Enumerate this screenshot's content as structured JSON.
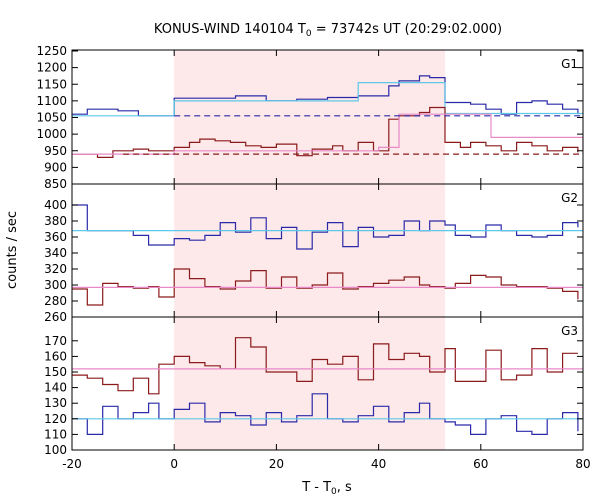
{
  "chart_data": {
    "type": "line",
    "title": "KONUS-WIND 140104 T",
    "title_sub": "0",
    "title_suffix": " = 73742s UT (20:29:02.000)",
    "xlabel": "T - T",
    "xlabel_sub": "0",
    "xlabel_suffix": ", s",
    "ylabel": "counts / sec",
    "xlim": [
      -20,
      80
    ],
    "xticks": [
      "-20",
      "0",
      "20",
      "40",
      "60",
      "80"
    ],
    "shaded_interval": [
      0,
      53
    ],
    "shade_color": "#fde8ea",
    "panels": [
      {
        "name": "G1",
        "ylim": [
          850,
          1250
        ],
        "yticks": [
          850,
          900,
          950,
          1000,
          1050,
          1100,
          1150,
          1200,
          1250
        ],
        "series": [
          {
            "color": "#2a2aa8",
            "edges": [
              -20,
              -17,
              -11,
              -7,
              0,
              12,
              18,
              24,
              30,
              36,
              42,
              44,
              48,
              50,
              53,
              58,
              61,
              64,
              67,
              70,
              73,
              76,
              79
            ],
            "values": [
              1060,
              1075,
              1070,
              1055,
              1108,
              1115,
              1100,
              1105,
              1110,
              1115,
              1145,
              1160,
              1175,
              1170,
              1095,
              1090,
              1075,
              1060,
              1095,
              1100,
              1090,
              1075,
              1060
            ]
          },
          {
            "color": "#5ec8e8",
            "edges": [
              -20,
              0,
              36,
              53,
              80
            ],
            "values": [
              1055,
              1100,
              1155,
              1062
            ]
          },
          {
            "color": "#8b1a1a",
            "edges": [
              -20,
              -15,
              -12,
              -8,
              -5,
              0,
              3,
              5,
              8,
              11,
              14,
              17,
              20,
              24,
              27,
              31,
              33,
              36,
              39,
              40,
              42,
              44,
              48,
              50,
              53,
              56,
              58,
              61,
              64,
              67,
              70,
              73,
              76,
              79
            ],
            "values": [
              940,
              930,
              950,
              955,
              950,
              960,
              975,
              985,
              980,
              975,
              965,
              960,
              970,
              935,
              955,
              965,
              950,
              975,
              950,
              950,
              1045,
              1055,
              1065,
              1080,
              975,
              960,
              975,
              965,
              950,
              975,
              965,
              950,
              960,
              945
            ]
          },
          {
            "color": "#e889c8",
            "edges": [
              -20,
              0,
              40,
              44,
              62,
              80
            ],
            "values": [
              940,
              950,
              960,
              1060,
              990,
              940
            ]
          },
          {
            "color": "#2a2aa8",
            "dashed": true,
            "edges": [
              0,
              80
            ],
            "values": [
              1055,
              1055
            ]
          },
          {
            "color": "#8b1a1a",
            "dashed": true,
            "edges": [
              -10,
              80
            ],
            "values": [
              940,
              940
            ]
          }
        ]
      },
      {
        "name": "G2",
        "ylim": [
          260,
          405
        ],
        "yticks": [
          260,
          280,
          300,
          320,
          340,
          360,
          380,
          400
        ],
        "series": [
          {
            "color": "#2a2aa8",
            "edges": [
              -20,
              -17,
              -11,
              -8,
              -5,
              0,
              3,
              6,
              9,
              12,
              15,
              18,
              21,
              24,
              27,
              30,
              33,
              36,
              39,
              42,
              45,
              48,
              50,
              53,
              55,
              58,
              61,
              64,
              67,
              70,
              73,
              76,
              79
            ],
            "values": [
              400,
              368,
              368,
              362,
              350,
              358,
              356,
              362,
              378,
              366,
              384,
              358,
              372,
              345,
              366,
              378,
              348,
              372,
              360,
              362,
              380,
              368,
              380,
              375,
              362,
              360,
              375,
              368,
              362,
              360,
              362,
              378,
              372
            ]
          },
          {
            "color": "#5ec8e8",
            "edges": [
              -20,
              80
            ],
            "values": [
              368,
              368
            ]
          },
          {
            "color": "#8b1a1a",
            "edges": [
              -20,
              -17,
              -14,
              -11,
              -8,
              -5,
              -3,
              0,
              3,
              6,
              9,
              12,
              15,
              18,
              21,
              24,
              27,
              30,
              33,
              36,
              39,
              42,
              45,
              48,
              50,
              53,
              55,
              58,
              61,
              64,
              67,
              70,
              73,
              76,
              79
            ],
            "values": [
              295,
              275,
              302,
              298,
              296,
              298,
              285,
              320,
              308,
              298,
              295,
              305,
              318,
              296,
              310,
              296,
              300,
              315,
              295,
              298,
              302,
              306,
              310,
              300,
              298,
              296,
              302,
              312,
              310,
              300,
              298,
              298,
              296,
              292,
              282
            ]
          },
          {
            "color": "#e889c8",
            "edges": [
              -20,
              80
            ],
            "values": [
              297,
              297
            ]
          }
        ]
      },
      {
        "name": "G3",
        "ylim": [
          100,
          175
        ],
        "yticks": [
          100,
          110,
          120,
          130,
          140,
          150,
          160,
          170
        ],
        "series": [
          {
            "color": "#8b1a1a",
            "edges": [
              -20,
              -17,
              -14,
              -11,
              -8,
              -5,
              -3,
              0,
              3,
              6,
              9,
              12,
              15,
              18,
              21,
              24,
              27,
              30,
              33,
              36,
              39,
              42,
              45,
              48,
              50,
              53,
              55,
              58,
              61,
              64,
              67,
              70,
              73,
              76,
              79
            ],
            "values": [
              148,
              146,
              142,
              138,
              146,
              136,
              155,
              160,
              156,
              154,
              152,
              172,
              166,
              150,
              150,
              144,
              158,
              155,
              160,
              145,
              168,
              158,
              162,
              160,
              150,
              165,
              144,
              144,
              164,
              145,
              148,
              165,
              150,
              162,
              162
            ]
          },
          {
            "color": "#e889c8",
            "edges": [
              -20,
              80
            ],
            "values": [
              152,
              152
            ]
          },
          {
            "color": "#2a2aa8",
            "edges": [
              -20,
              -17,
              -14,
              -11,
              -8,
              -5,
              -3,
              0,
              3,
              6,
              9,
              12,
              15,
              18,
              21,
              24,
              27,
              30,
              33,
              36,
              39,
              42,
              45,
              48,
              50,
              53,
              55,
              58,
              61,
              64,
              67,
              70,
              73,
              76,
              79
            ],
            "values": [
              120,
              110,
              128,
              120,
              124,
              130,
              120,
              126,
              130,
              118,
              124,
              122,
              116,
              124,
              118,
              122,
              136,
              120,
              118,
              122,
              128,
              118,
              124,
              130,
              120,
              118,
              116,
              110,
              120,
              122,
              112,
              110,
              120,
              124,
              112
            ]
          },
          {
            "color": "#5ec8e8",
            "edges": [
              -20,
              80
            ],
            "values": [
              120,
              120
            ]
          }
        ]
      }
    ]
  }
}
